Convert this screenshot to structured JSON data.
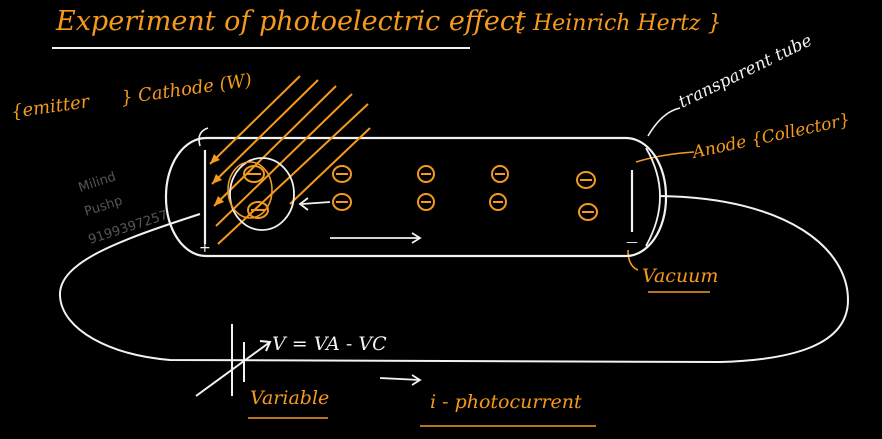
{
  "title": "Experiment of photoelectric effect",
  "title_attribution": "{ Heinrich Hertz }",
  "labels": {
    "emitter": "{emitter",
    "cathode": "} Cathode (W)",
    "transparent_tube": "transparent tube",
    "anode": "Anode {Collector}",
    "vacuum": "Vacuum",
    "voltage": "V = VA - VC",
    "variable": "Variable",
    "photocurrent": "i - photocurrent",
    "plus": "+",
    "minus": "—"
  },
  "watermark": [
    "Milind",
    "Pushp",
    "9199397257"
  ],
  "colors": {
    "background": "#000000",
    "ink_orange": "#f59a1d",
    "ink_white": "#f2f2f2"
  }
}
